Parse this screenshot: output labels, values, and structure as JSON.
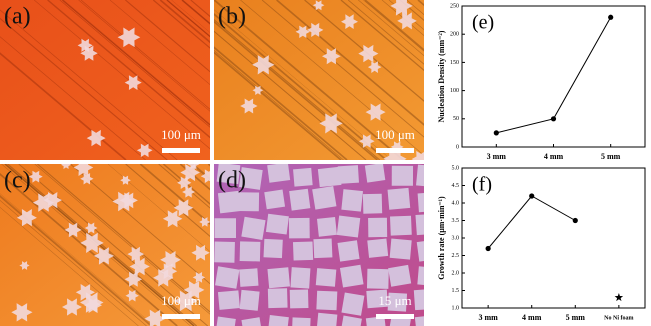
{
  "panels": [
    {
      "label": "(a)",
      "scale_bar": "100 μm"
    },
    {
      "label": "(b)",
      "scale_bar": "100 μm"
    },
    {
      "label": "(c)",
      "scale_bar": "100 μm"
    },
    {
      "label": "(d)",
      "scale_bar": "15 μm"
    }
  ],
  "chart_data": [
    {
      "type": "line",
      "annotation": "(e)",
      "y_label": "Nucleation Density (mm⁻²)",
      "categories": [
        "3 mm",
        "4 mm",
        "5 mm"
      ],
      "values": [
        25,
        50,
        230
      ],
      "color": "#000000",
      "marker": "circle",
      "ylim": [
        0,
        250
      ],
      "yticks": [
        0,
        50,
        100,
        150,
        200,
        250
      ]
    },
    {
      "type": "line",
      "annotation": "(f)",
      "y_label": "Growth rate (μm·min⁻¹)",
      "categories": [
        "3 mm",
        "4 mm",
        "5 mm",
        "No Ni foam"
      ],
      "series": [
        {
          "color": "#000000",
          "marker": "circle",
          "values": [
            2.7,
            4.2,
            3.5,
            null
          ]
        },
        {
          "color": "#000000",
          "marker": "star",
          "values": [
            null,
            null,
            null,
            1.3
          ]
        }
      ],
      "ylim": [
        1.0,
        5.0
      ],
      "yticks": [
        {
          "value": 1.0,
          "label": "1.0"
        },
        {
          "value": 1.5,
          "label": "1.5"
        },
        {
          "value": 2.0,
          "label": "2.0"
        },
        {
          "value": 2.5,
          "label": "2.5"
        },
        {
          "value": 3.0,
          "label": "3.0"
        },
        {
          "value": 3.5,
          "label": "3.5"
        },
        {
          "value": 4.0,
          "label": "4.0"
        },
        {
          "value": 4.5,
          "label": "4.5"
        },
        {
          "value": 5.0,
          "label": "5.0"
        }
      ]
    }
  ]
}
